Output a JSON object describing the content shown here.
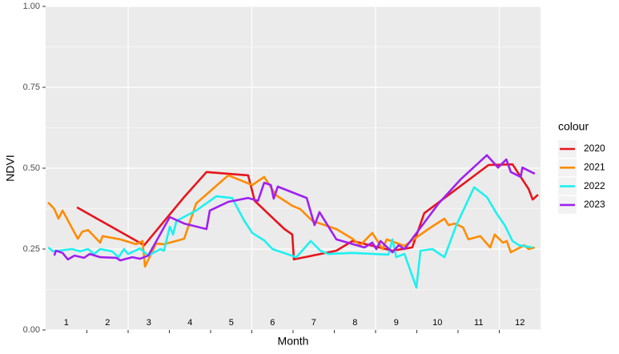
{
  "chart_data": {
    "type": "line",
    "x_label": "Month",
    "y_label": "NDVI",
    "legend_title": "colour",
    "legend_position": "right",
    "xlim": [
      0.5,
      12.5
    ],
    "xticks": [
      1,
      2,
      3,
      4,
      5,
      6,
      7,
      8,
      9,
      10,
      11,
      12
    ],
    "x_tick_marks": [
      1.5,
      2.5,
      3.5,
      4.5,
      5.5,
      6.5,
      7.5,
      8.5,
      9.5,
      10.5,
      11.5
    ],
    "x_grid": [
      2.5,
      5.5,
      8.5,
      11.5
    ],
    "ylim": [
      0,
      1
    ],
    "yticks": [
      {
        "value": 0,
        "label": "0.00"
      },
      {
        "value": 0.25,
        "label": "0.25"
      },
      {
        "value": 0.5,
        "label": "0.50"
      },
      {
        "value": 0.75,
        "label": "0.75"
      },
      {
        "value": 1,
        "label": "1.00"
      }
    ],
    "y_minor_grid": [
      0.125,
      0.375,
      0.625,
      0.875
    ],
    "grid": true,
    "series": [
      {
        "name": "2020",
        "color": "#e8141c",
        "x": [
          1.26,
          2.89,
          3.86,
          4.4,
          5.41,
          5.57,
          6.29,
          6.48,
          6.52,
          7.55,
          7.94,
          8.91,
          9.39,
          9.68,
          11.24,
          11.82,
          12.21,
          12.31,
          12.44
        ],
        "values": [
          0.379,
          0.262,
          0.411,
          0.488,
          0.478,
          0.399,
          0.312,
          0.295,
          0.218,
          0.245,
          0.275,
          0.245,
          0.255,
          0.361,
          0.51,
          0.512,
          0.436,
          0.403,
          0.418
        ]
      },
      {
        "name": "2021",
        "color": "#ff8c00",
        "x": [
          0.56,
          0.71,
          0.81,
          0.91,
          1.28,
          1.39,
          1.53,
          1.82,
          1.88,
          2.31,
          2.69,
          2.85,
          2.91,
          3.18,
          3.37,
          3.86,
          4.15,
          4.93,
          5.51,
          5.8,
          6.09,
          6.48,
          6.67,
          6.97,
          7.55,
          7.94,
          8.13,
          8.42,
          8.67,
          8.77,
          9.2,
          9.78,
          10.17,
          10.27,
          10.42,
          10.62,
          10.75,
          11.04,
          11.28,
          11.39,
          11.59,
          11.68,
          11.78,
          12.11,
          12.21,
          12.36
        ],
        "values": [
          0.394,
          0.374,
          0.344,
          0.369,
          0.282,
          0.304,
          0.309,
          0.27,
          0.29,
          0.28,
          0.265,
          0.275,
          0.196,
          0.267,
          0.265,
          0.282,
          0.391,
          0.478,
          0.448,
          0.473,
          0.416,
          0.384,
          0.374,
          0.337,
          0.312,
          0.282,
          0.262,
          0.3,
          0.25,
          0.28,
          0.26,
          0.312,
          0.344,
          0.324,
          0.329,
          0.317,
          0.28,
          0.29,
          0.255,
          0.295,
          0.27,
          0.275,
          0.24,
          0.262,
          0.25,
          0.255
        ]
      },
      {
        "name": "2022",
        "color": "#1ef0f0",
        "x": [
          0.56,
          0.68,
          1.14,
          1.33,
          1.53,
          1.68,
          1.82,
          2.11,
          2.27,
          2.4,
          2.5,
          2.79,
          2.99,
          3.28,
          3.37,
          3.51,
          3.59,
          3.67,
          4.15,
          4.64,
          5.02,
          5.32,
          5.51,
          5.8,
          6.0,
          6.58,
          6.93,
          7.16,
          7.35,
          7.94,
          8.81,
          8.91,
          9.0,
          9.2,
          9.49,
          9.59,
          9.88,
          10.17,
          10.46,
          10.89,
          11.2,
          11.43,
          11.63,
          11.82,
          11.98,
          12.31
        ],
        "values": [
          0.255,
          0.243,
          0.25,
          0.243,
          0.25,
          0.235,
          0.25,
          0.243,
          0.225,
          0.25,
          0.235,
          0.252,
          0.23,
          0.25,
          0.245,
          0.319,
          0.295,
          0.337,
          0.369,
          0.413,
          0.408,
          0.337,
          0.3,
          0.277,
          0.25,
          0.225,
          0.275,
          0.245,
          0.235,
          0.238,
          0.233,
          0.28,
          0.225,
          0.235,
          0.131,
          0.245,
          0.25,
          0.225,
          0.324,
          0.441,
          0.411,
          0.361,
          0.324,
          0.275,
          0.262,
          0.255
        ]
      },
      {
        "name": "2023",
        "color": "#a020f0",
        "x": [
          0.71,
          0.75,
          0.91,
          1.04,
          1.2,
          1.43,
          1.57,
          1.82,
          2.21,
          2.31,
          2.6,
          2.79,
          2.99,
          3.51,
          3.86,
          4.4,
          4.48,
          4.93,
          5.41,
          5.65,
          5.8,
          5.96,
          6.03,
          6.13,
          6.83,
          7.02,
          7.14,
          7.55,
          8.23,
          8.42,
          8.52,
          8.62,
          8.91,
          9.06,
          9.2,
          10.03,
          10.56,
          11.2,
          11.47,
          11.67,
          11.78,
          12.02,
          12.06,
          12.36
        ],
        "values": [
          0.23,
          0.245,
          0.238,
          0.218,
          0.23,
          0.223,
          0.235,
          0.225,
          0.223,
          0.215,
          0.225,
          0.22,
          0.23,
          0.349,
          0.329,
          0.312,
          0.369,
          0.396,
          0.408,
          0.399,
          0.455,
          0.448,
          0.406,
          0.443,
          0.408,
          0.324,
          0.364,
          0.28,
          0.255,
          0.27,
          0.25,
          0.275,
          0.24,
          0.262,
          0.25,
          0.391,
          0.465,
          0.54,
          0.502,
          0.527,
          0.488,
          0.473,
          0.502,
          0.483
        ]
      }
    ]
  }
}
